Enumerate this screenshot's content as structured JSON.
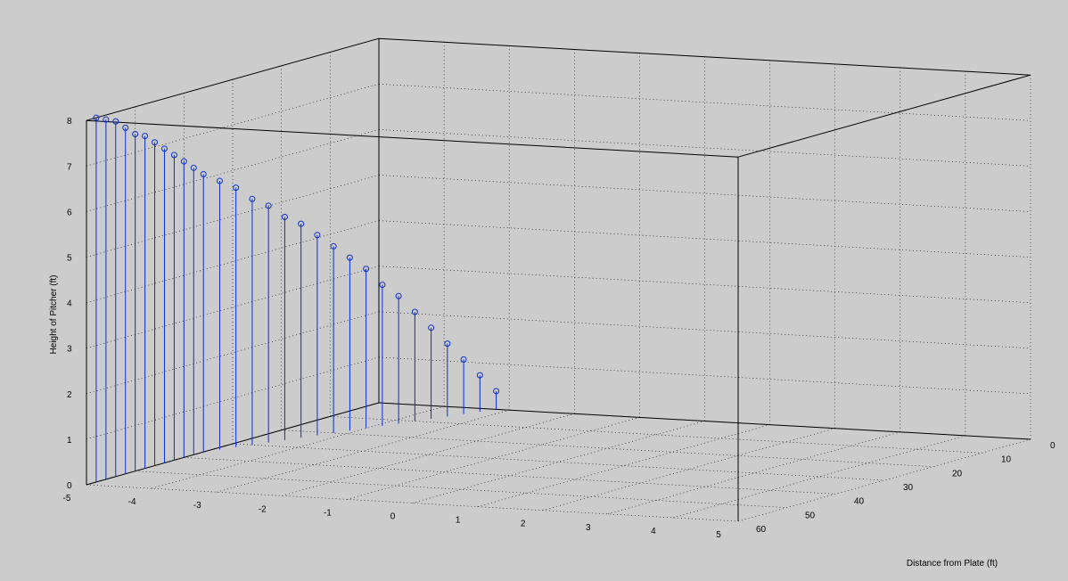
{
  "chart_data": {
    "type": "stem3",
    "title": "",
    "xlabel": "",
    "ylabel": "Distance from Plate (ft)",
    "zlabel": "Height of Pitcher (ft)",
    "xlim": [
      -5,
      5
    ],
    "ylim": [
      0,
      60
    ],
    "zlim": [
      0,
      8
    ],
    "x_ticks": [
      -5,
      -4,
      -3,
      -2,
      -1,
      0,
      1,
      2,
      3,
      4,
      5
    ],
    "y_ticks": [
      0,
      10,
      20,
      30,
      40,
      50,
      60
    ],
    "z_ticks": [
      0,
      1,
      2,
      3,
      4,
      5,
      6,
      7,
      8
    ],
    "grid": true,
    "series": [
      {
        "color": "#0b2fd0",
        "marker": "o",
        "points": [
          {
            "x": -3.2,
            "y": 60,
            "z": 0.4
          },
          {
            "x": -3.3,
            "y": 58,
            "z": 0.8
          },
          {
            "x": -3.4,
            "y": 56,
            "z": 1.2
          },
          {
            "x": -3.5,
            "y": 54,
            "z": 1.6
          },
          {
            "x": -3.6,
            "y": 52,
            "z": 2.0
          },
          {
            "x": -3.7,
            "y": 50,
            "z": 2.4
          },
          {
            "x": -3.8,
            "y": 48,
            "z": 2.8
          },
          {
            "x": -3.9,
            "y": 46,
            "z": 3.1
          },
          {
            "x": -4.0,
            "y": 44,
            "z": 3.5
          },
          {
            "x": -4.1,
            "y": 42,
            "z": 3.8
          },
          {
            "x": -4.2,
            "y": 40,
            "z": 4.1
          },
          {
            "x": -4.3,
            "y": 38,
            "z": 4.4
          },
          {
            "x": -4.4,
            "y": 36,
            "z": 4.7
          },
          {
            "x": -4.5,
            "y": 34,
            "z": 4.9
          },
          {
            "x": -4.6,
            "y": 32,
            "z": 5.2
          },
          {
            "x": -4.7,
            "y": 30,
            "z": 5.4
          },
          {
            "x": -4.8,
            "y": 28,
            "z": 5.7
          },
          {
            "x": -4.9,
            "y": 26,
            "z": 5.9
          },
          {
            "x": -5.0,
            "y": 24,
            "z": 6.1
          },
          {
            "x": -5.0,
            "y": 22,
            "z": 6.3
          },
          {
            "x": -5.0,
            "y": 20,
            "z": 6.5
          },
          {
            "x": -5.0,
            "y": 18,
            "z": 6.7
          },
          {
            "x": -5.0,
            "y": 16,
            "z": 6.9
          },
          {
            "x": -5.0,
            "y": 14,
            "z": 7.1
          },
          {
            "x": -5.0,
            "y": 12,
            "z": 7.3
          },
          {
            "x": -5.0,
            "y": 10,
            "z": 7.4
          },
          {
            "x": -5.0,
            "y": 8,
            "z": 7.6
          },
          {
            "x": -5.0,
            "y": 6,
            "z": 7.8
          },
          {
            "x": -5.0,
            "y": 4,
            "z": 7.9
          },
          {
            "x": -5.0,
            "y": 2,
            "z": 8.0
          }
        ]
      }
    ]
  }
}
